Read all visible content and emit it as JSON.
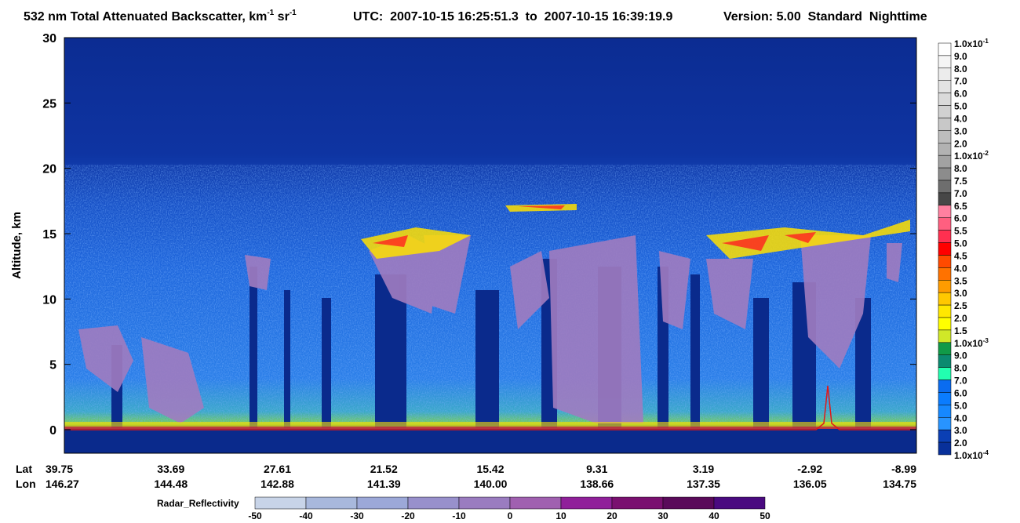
{
  "chart_data": {
    "type": "curtain",
    "title": {
      "main": "532 nm Total Attenuated Backscatter, km",
      "unit_exp1": "-1",
      "unit_sr": " sr",
      "unit_exp2": "-1",
      "utc": "UTC:  2007-10-15 16:25:51.3  to  2007-10-15 16:39:19.9",
      "version": "Version: 5.00  Standard  Nighttime"
    },
    "ylabel": "Altitude, km",
    "ylim": [
      -1.8,
      30
    ],
    "yticks": [
      0,
      5,
      10,
      15,
      20,
      25,
      30
    ],
    "x_row_labels": [
      "Lat",
      "Lon"
    ],
    "lat": [
      "39.75",
      "33.69",
      "27.61",
      "21.52",
      "15.42",
      "9.31",
      "3.19",
      "-2.92",
      "-8.99"
    ],
    "lon": [
      "146.27",
      "144.48",
      "142.88",
      "141.39",
      "140.00",
      "138.66",
      "137.35",
      "136.05",
      "134.75"
    ],
    "colorbar": {
      "labels": [
        {
          "base": "1.0x10",
          "exp": "-1"
        },
        "9.0",
        "8.0",
        "7.0",
        "6.0",
        "5.0",
        "4.0",
        "3.0",
        "2.0",
        {
          "base": "1.0x10",
          "exp": "-2"
        },
        "8.0",
        "7.5",
        "7.0",
        "6.5",
        "6.0",
        "5.5",
        "5.0",
        "4.5",
        "4.0",
        "3.5",
        "3.0",
        "2.5",
        "2.0",
        "1.5",
        {
          "base": "1.0x10",
          "exp": "-3"
        },
        "9.0",
        "8.0",
        "7.0",
        "6.0",
        "5.0",
        "4.0",
        "3.0",
        "2.0",
        {
          "base": "1.0x10",
          "exp": "-4"
        }
      ],
      "colors": [
        "#fefefe",
        "#f5f5f5",
        "#ececec",
        "#e3e3e3",
        "#dadada",
        "#d1d1d1",
        "#c8c8c8",
        "#bdbdbd",
        "#b2b2b2",
        "#a2a2a2",
        "#8c8c8c",
        "#6e6e6e",
        "#474747",
        "#ff80a0",
        "#ff5f80",
        "#ff3050",
        "#ff0000",
        "#ff4a00",
        "#ff7200",
        "#ff9c00",
        "#ffc800",
        "#ffe800",
        "#ffff00",
        "#d0e828",
        "#109a48",
        "#0b8a70",
        "#22ffb0",
        "#0a6cf0",
        "#0a7cff",
        "#1688ff",
        "#2894ff",
        "#0b3fb4",
        "#08309a"
      ]
    },
    "radar_colorbar": {
      "label": "Radar_Reflectivity",
      "ticks": [
        -50,
        -40,
        -30,
        -20,
        -10,
        0,
        10,
        20,
        30,
        40,
        50
      ],
      "colors": [
        "#c8d4e8",
        "#a8b8dc",
        "#9ca8d8",
        "#9890cc",
        "#9a7cc0",
        "#a060b0",
        "#90209a",
        "#7a1070",
        "#5a0a5a",
        "#4a0a80"
      ]
    }
  }
}
